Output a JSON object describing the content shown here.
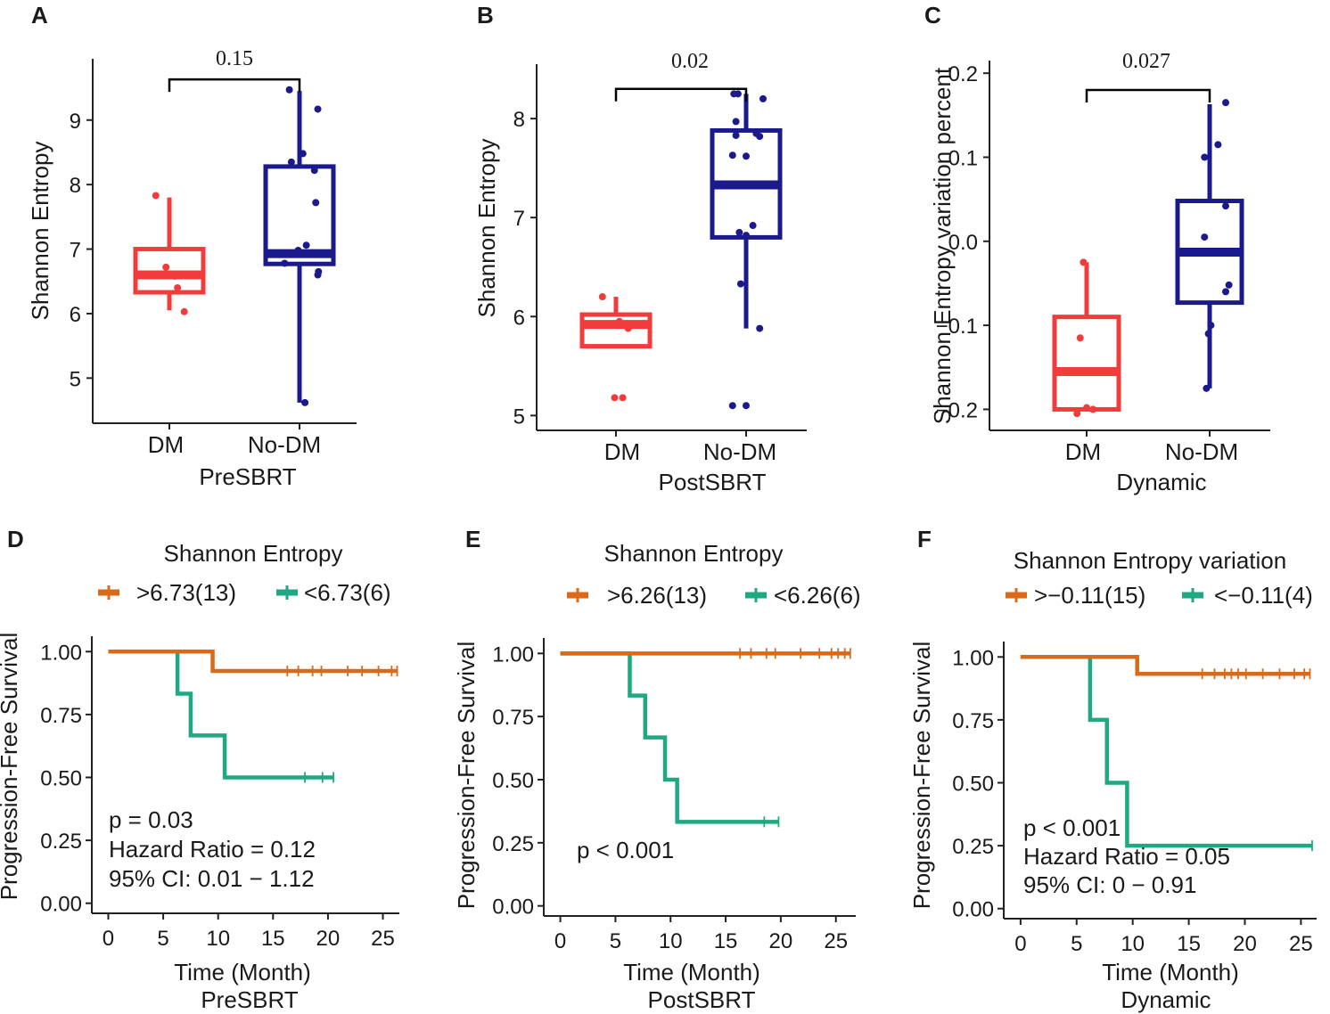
{
  "panels": [
    {
      "letter": "A"
    },
    {
      "letter": "B"
    },
    {
      "letter": "C"
    },
    {
      "letter": "D"
    },
    {
      "letter": "E"
    },
    {
      "letter": "F"
    }
  ],
  "colors": {
    "dm": "#f23c3c",
    "nodm": "#1b1a8c",
    "high": "#d86a1a",
    "low": "#20a882"
  },
  "chart_data": [
    {
      "id": "A",
      "type": "box",
      "ylabel": "Shannon Entropy",
      "xlabel": "PreSBRT",
      "categories": [
        "DM",
        "No-DM"
      ],
      "ylim": [
        4.3,
        9.95
      ],
      "yticks": [
        5,
        6,
        7,
        8,
        9
      ],
      "comparison_p": "0.15",
      "bracket_y": 9.63,
      "boxes": [
        {
          "group": "DM",
          "min": 6.05,
          "q1": 6.33,
          "median": 6.6,
          "q3": 7.0,
          "max": 7.8
        },
        {
          "group": "No-DM",
          "min": 4.62,
          "q1": 6.77,
          "median": 6.93,
          "q3": 8.28,
          "max": 9.45
        }
      ],
      "points": [
        {
          "group": "DM",
          "values": [
            7.83,
            6.72,
            6.58,
            6.4,
            6.03
          ],
          "jitter": [
            -0.2,
            -0.05,
            0.08,
            0.12,
            0.22
          ]
        },
        {
          "group": "No-DM",
          "values": [
            9.47,
            9.17,
            8.48,
            8.35,
            8.22,
            7.72,
            7.06,
            6.98,
            6.92,
            6.78,
            6.65,
            6.6,
            4.62
          ],
          "jitter": [
            -0.15,
            0.27,
            0.05,
            -0.12,
            0.22,
            0.24,
            0.1,
            -0.02,
            0.18,
            -0.22,
            0.28,
            0.27,
            0.08
          ]
        }
      ]
    },
    {
      "id": "B",
      "type": "box",
      "ylabel": "Shannon Entropy",
      "xlabel": "PostSBRT",
      "categories": [
        "DM",
        "No-DM"
      ],
      "ylim": [
        4.85,
        8.55
      ],
      "yticks": [
        5,
        6,
        7,
        8
      ],
      "comparison_p": "0.02",
      "bracket_y": 8.3,
      "boxes": [
        {
          "group": "DM",
          "min": 5.7,
          "q1": 5.7,
          "median": 5.92,
          "q3": 6.02,
          "max": 6.2
        },
        {
          "group": "No-DM",
          "min": 5.88,
          "q1": 6.8,
          "median": 7.33,
          "q3": 7.88,
          "max": 8.25
        }
      ],
      "points": [
        {
          "group": "DM",
          "values": [
            6.2,
            5.95,
            5.88,
            5.18,
            5.18
          ],
          "jitter": [
            -0.2,
            0.05,
            0.18,
            -0.02,
            0.1
          ]
        },
        {
          "group": "No-DM",
          "values": [
            8.25,
            8.25,
            8.2,
            7.97,
            7.85,
            7.83,
            7.82,
            7.63,
            7.62,
            6.92,
            6.85,
            6.82,
            6.33,
            5.88,
            5.1,
            5.1
          ],
          "jitter": [
            -0.18,
            -0.12,
            0.25,
            -0.15,
            0.15,
            -0.15,
            0.2,
            -0.2,
            0.0,
            0.1,
            -0.1,
            0.0,
            -0.08,
            0.2,
            -0.2,
            0.0
          ]
        }
      ]
    },
    {
      "id": "C",
      "type": "box",
      "ylabel": "Shannon Entropy variation percent",
      "xlabel": "Dynamic",
      "categories": [
        "DM",
        "No-DM"
      ],
      "ylim": [
        -0.225,
        0.215
      ],
      "yticks": [
        -0.2,
        -0.1,
        0.0,
        0.1,
        0.2
      ],
      "ytick_labels": [
        "−0.2",
        "−0.1",
        "0.0",
        "0.1",
        "0.2"
      ],
      "comparison_p": "0.027",
      "bracket_y": 0.18,
      "boxes": [
        {
          "group": "DM",
          "min": -0.2,
          "q1": -0.2,
          "median": -0.155,
          "q3": -0.09,
          "max": -0.025
        },
        {
          "group": "No-DM",
          "min": -0.175,
          "q1": -0.073,
          "median": -0.013,
          "q3": 0.048,
          "max": 0.163
        }
      ],
      "points": [
        {
          "group": "DM",
          "values": [
            -0.025,
            -0.115,
            -0.198,
            -0.205,
            -0.2
          ],
          "jitter": [
            -0.05,
            -0.1,
            0.0,
            -0.15,
            0.1
          ]
        },
        {
          "group": "No-DM",
          "values": [
            0.165,
            0.115,
            0.1,
            0.042,
            0.005,
            -0.052,
            -0.06,
            -0.1,
            -0.11,
            -0.175
          ],
          "jitter": [
            0.25,
            0.13,
            -0.08,
            0.25,
            -0.08,
            0.3,
            0.25,
            0.02,
            -0.02,
            -0.05
          ]
        }
      ]
    },
    {
      "id": "D",
      "type": "km",
      "legend_title": "Shannon Entropy",
      "legend": [
        ">6.73(13)",
        "<6.73(6)"
      ],
      "ylabel": "Progression-Free Survival",
      "xlabel": "Time (Month)",
      "sublabel": "PreSBRT",
      "xlim": [
        -1.5,
        26.5
      ],
      "xticks": [
        0,
        5,
        10,
        15,
        20,
        25
      ],
      "yticks": [
        0.0,
        0.25,
        0.5,
        0.75,
        1.0
      ],
      "ytick_labels": [
        "0.00",
        "0.25",
        "0.50",
        "0.75",
        "1.00"
      ],
      "annotations": [
        "p = 0.03",
        "Hazard Ratio = 0.12",
        "95% CI: 0.01 − 1.12"
      ],
      "series": [
        {
          "name": ">6.73(13)",
          "steps": [
            [
              0,
              1.0
            ],
            [
              9.5,
              0.923
            ]
          ],
          "end": 26.3,
          "censor": [
            16.3,
            17.3,
            18.6,
            19.4,
            21.8,
            23.1,
            24.6,
            25.8,
            26.3
          ]
        },
        {
          "name": "<6.73(6)",
          "steps": [
            [
              0,
              1.0
            ],
            [
              6.3,
              0.833
            ],
            [
              7.5,
              0.667
            ],
            [
              10.6,
              0.5
            ]
          ],
          "end": 20.5,
          "censor": [
            17.9,
            19.5,
            20.5
          ]
        }
      ]
    },
    {
      "id": "E",
      "type": "km",
      "legend_title": "Shannon Entropy",
      "legend": [
        ">6.26(13)",
        "<6.26(6)"
      ],
      "ylabel": "Progression-Free Survival",
      "xlabel": "Time (Month)",
      "sublabel": "PostSBRT",
      "xlim": [
        -1.5,
        26.8
      ],
      "xticks": [
        0,
        5,
        10,
        15,
        20,
        25
      ],
      "yticks": [
        0.0,
        0.25,
        0.5,
        0.75,
        1.0
      ],
      "ytick_labels": [
        "0.00",
        "0.25",
        "0.50",
        "0.75",
        "1.00"
      ],
      "annotations": [
        "p < 0.001"
      ],
      "series": [
        {
          "name": ">6.26(13)",
          "steps": [
            [
              0,
              1.0
            ]
          ],
          "end": 26.3,
          "censor": [
            16.3,
            17.3,
            18.7,
            19.5,
            21.8,
            23.5,
            24.6,
            25.2,
            25.8,
            26.3
          ]
        },
        {
          "name": "<6.26(6)",
          "steps": [
            [
              0,
              1.0
            ],
            [
              6.3,
              0.833
            ],
            [
              7.7,
              0.667
            ],
            [
              9.5,
              0.5
            ],
            [
              10.6,
              0.333
            ]
          ],
          "end": 19.8,
          "censor": [
            18.5,
            19.8
          ]
        }
      ]
    },
    {
      "id": "F",
      "type": "km",
      "legend_title": "Shannon Entropy variation",
      "legend": [
        ">−0.11(15)",
        "<−0.11(4)"
      ],
      "ylabel": "Progression-Free Survival",
      "xlabel": "Time (Month)",
      "sublabel": "Dynamic",
      "xlim": [
        -1.5,
        26.4
      ],
      "xticks": [
        0,
        5,
        10,
        15,
        20,
        25
      ],
      "yticks": [
        0.0,
        0.25,
        0.5,
        0.75,
        1.0
      ],
      "ytick_labels": [
        "0.00",
        "0.25",
        "0.50",
        "0.75",
        "1.00"
      ],
      "annotations": [
        "p < 0.001",
        "Hazard Ratio = 0.05",
        "95% CI: 0 − 0.91"
      ],
      "series": [
        {
          "name": ">−0.11(15)",
          "steps": [
            [
              0,
              1.0
            ],
            [
              10.4,
              0.933
            ]
          ],
          "end": 25.8,
          "censor": [
            16.2,
            17.3,
            18.2,
            18.8,
            19.4,
            20.1,
            21.6,
            23.1,
            24.4,
            25.3,
            25.8
          ]
        },
        {
          "name": "<−0.11(4)",
          "steps": [
            [
              0,
              1.0
            ],
            [
              6.2,
              0.75
            ],
            [
              7.7,
              0.5
            ],
            [
              9.5,
              0.25
            ]
          ],
          "end": 26.0,
          "censor": [
            26.0
          ]
        }
      ]
    }
  ]
}
